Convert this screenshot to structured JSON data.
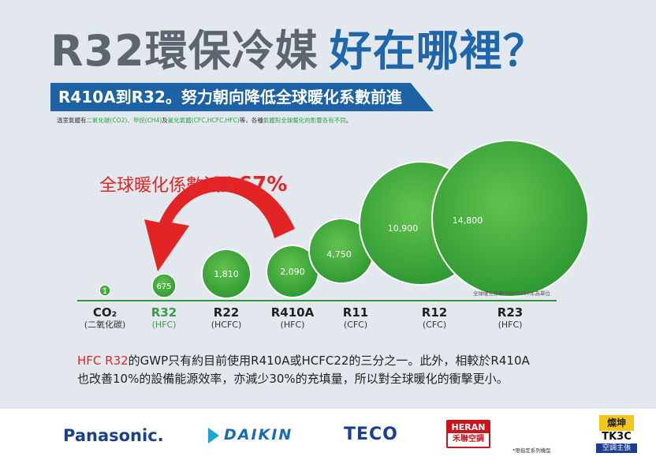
{
  "headline": {
    "part1": "R32環保冷媒",
    "part2": "好在哪裡？"
  },
  "banner": "R410A到R32。努力朝向降低全球暖化系數前進",
  "note": {
    "t1": "溫室氣體有",
    "g1": "二氧化碳(CO2)、甲烷(CH4)",
    "t2": "及",
    "g2": "氟化氣體(CFC,HCFC,HFC)",
    "t3": "等，各種",
    "g3": "氣體對全球暖化的影響各有不同",
    "t4": "。"
  },
  "reduction": {
    "text": "全球暖化係數減少",
    "value": "67%"
  },
  "unit_note": "全球暖化係數(GWP)100年為單位",
  "refrigerants": [
    {
      "name": "CO₂",
      "sub": "(二氧化碳)",
      "gwp": "1",
      "highlight": false
    },
    {
      "name": "R32",
      "sub": "(HFC)",
      "gwp": "675",
      "highlight": true
    },
    {
      "name": "R22",
      "sub": "(HCFC)",
      "gwp": "1,810",
      "highlight": false
    },
    {
      "name": "R410A",
      "sub": "(HFC)",
      "gwp": "2,090",
      "highlight": false
    },
    {
      "name": "R11",
      "sub": "(CFC)",
      "gwp": "4,750",
      "highlight": false
    },
    {
      "name": "R12",
      "sub": "(CFC)",
      "gwp": "10,900",
      "highlight": false
    },
    {
      "name": "R23",
      "sub": "(HFC)",
      "gwp": "14,800",
      "highlight": false
    }
  ],
  "body": {
    "red": "HFC R32",
    "line1": "的GWP只有約目前使用R410A或HCFC22的三分之一。此外，相較於R410A",
    "line2": "也改善10%的設備能源效率，亦減少30%的充填量，所以對全球暖化的衝擊更小。"
  },
  "colors": {
    "title_gray": "#5d6670",
    "title_blue": "#1f67aa",
    "banner_blue": "#1d62a4",
    "accent_red": "#e02626",
    "bubble_green": "#3ea43b"
  },
  "logos": {
    "panasonic": "Panasonic.",
    "daikin": "DAIKIN",
    "teco": "TECO",
    "heran_en": "HERAN",
    "heran_zh": "禾聯空調",
    "limited": "*限指定系列機型",
    "tk3c_top": "燦坤",
    "tk3c_mid": "TK3C",
    "tk3c_bottom": "空調主張"
  }
}
